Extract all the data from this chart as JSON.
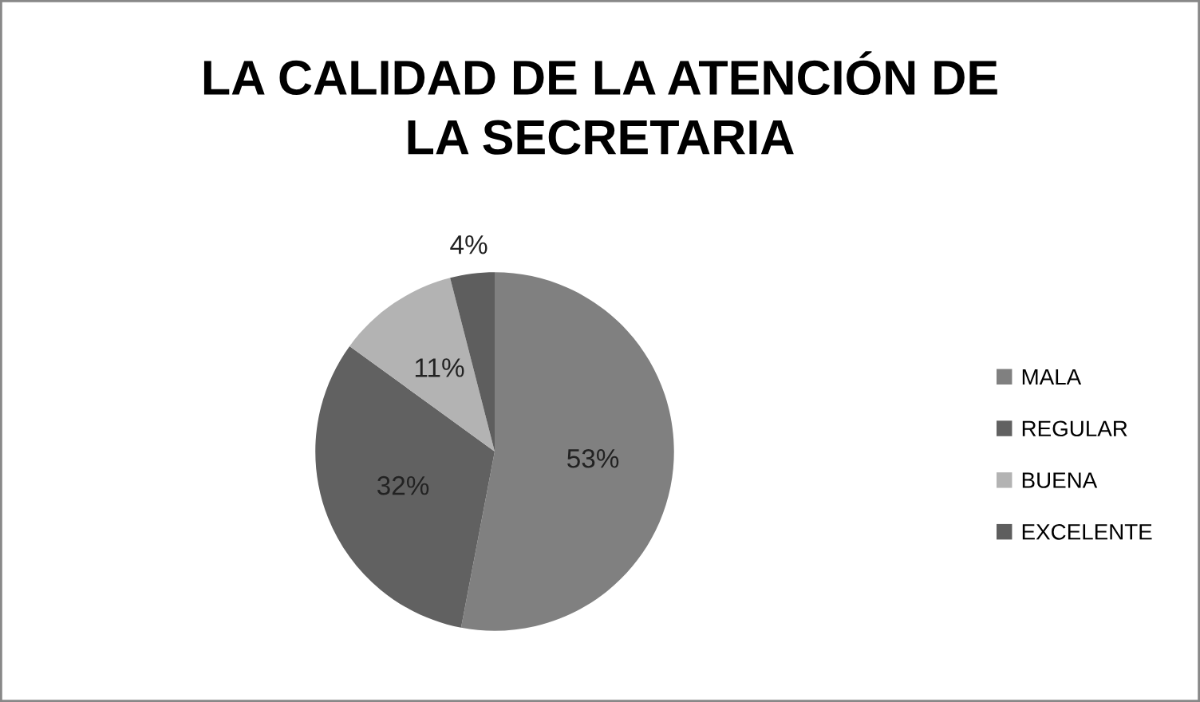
{
  "chart_data": {
    "type": "pie",
    "title": "LA CALIDAD DE LA ATENCIÓN DE\nLA SECRETARIA",
    "categories": [
      "MALA",
      "REGULAR",
      "BUENA",
      "EXCELENTE"
    ],
    "values": [
      53,
      32,
      11,
      4
    ],
    "colors": [
      "#808080",
      "#616161",
      "#b3b3b3",
      "#5e5e5e"
    ],
    "value_labels": [
      "53%",
      "32%",
      "11%",
      "4%"
    ],
    "legend": "right"
  }
}
